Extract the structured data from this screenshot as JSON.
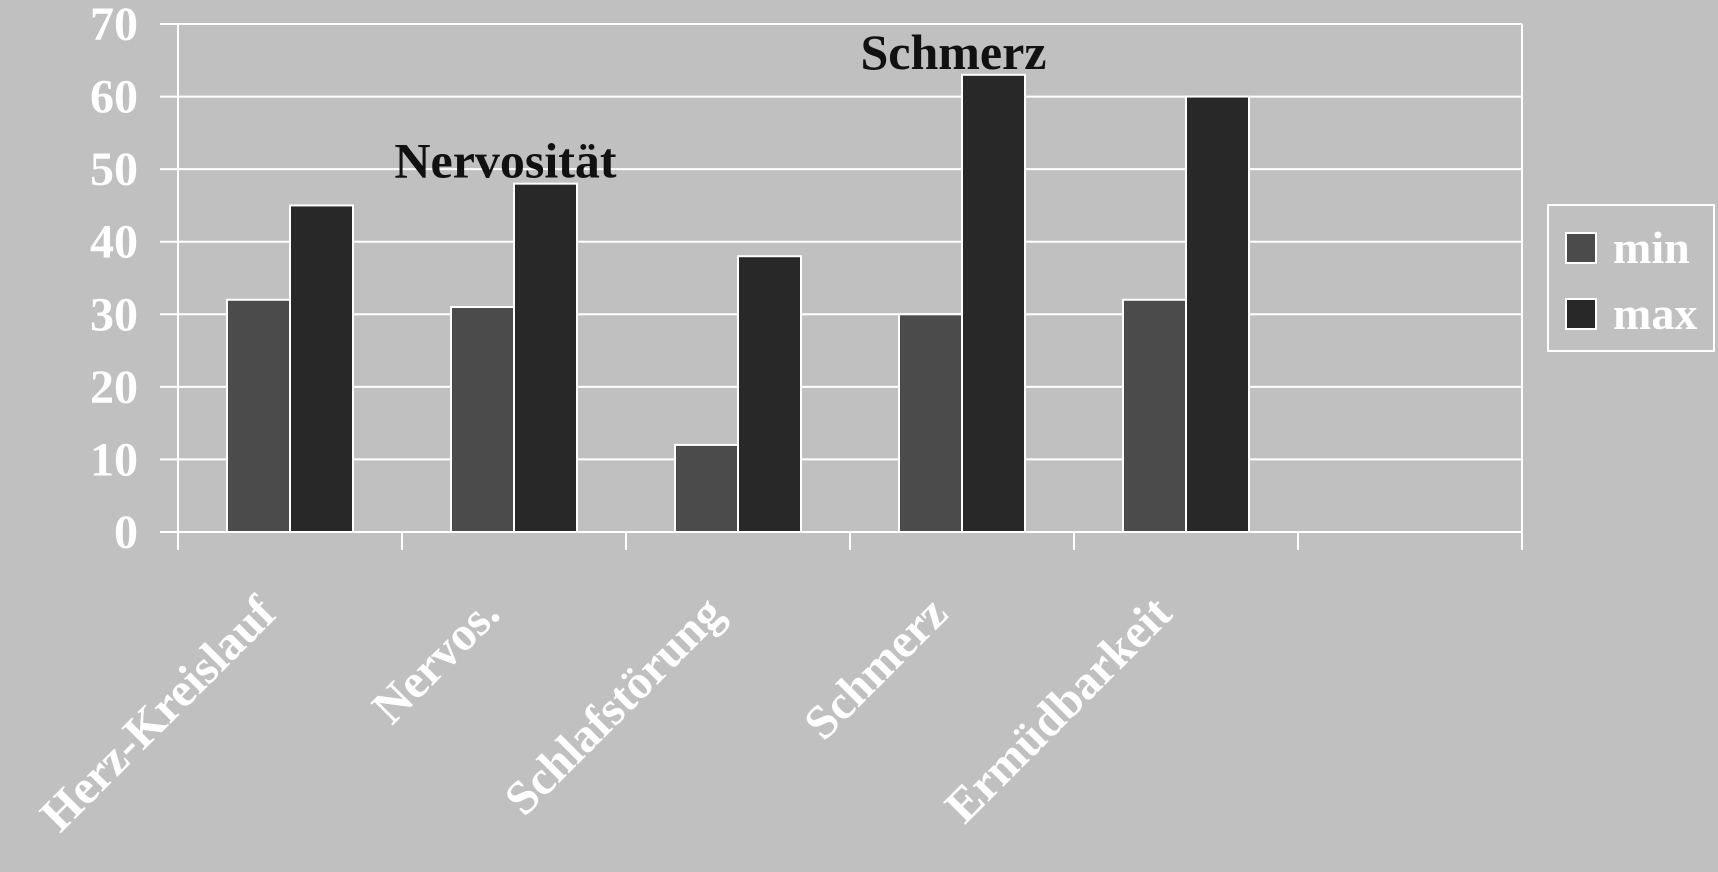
{
  "chart_data": {
    "type": "bar",
    "categories": [
      "Herz-Kreislauf",
      "Nervos.",
      "Schlafstörung",
      "Schmerz",
      "Ermüdbarkeit"
    ],
    "series": [
      {
        "name": "min",
        "values": [
          32,
          31,
          12,
          30,
          32
        ],
        "color": "#4b4b4b"
      },
      {
        "name": "max",
        "values": [
          45,
          48,
          38,
          63,
          60
        ],
        "color": "#282828"
      }
    ],
    "ylim": [
      0,
      70
    ],
    "yticks": [
      0,
      10,
      20,
      30,
      40,
      50,
      60,
      70
    ],
    "grid": true,
    "legend": "right",
    "annotations": [
      {
        "text": "Nervosität",
        "category": "Nervos.",
        "series": "max"
      },
      {
        "text": "Schmerz",
        "category": "Schmerz",
        "series": "max"
      }
    ],
    "colors": {
      "background": "#c0c0c0",
      "grid": "#ffffff",
      "text": "#ffffff",
      "annotation": "#111111"
    }
  }
}
